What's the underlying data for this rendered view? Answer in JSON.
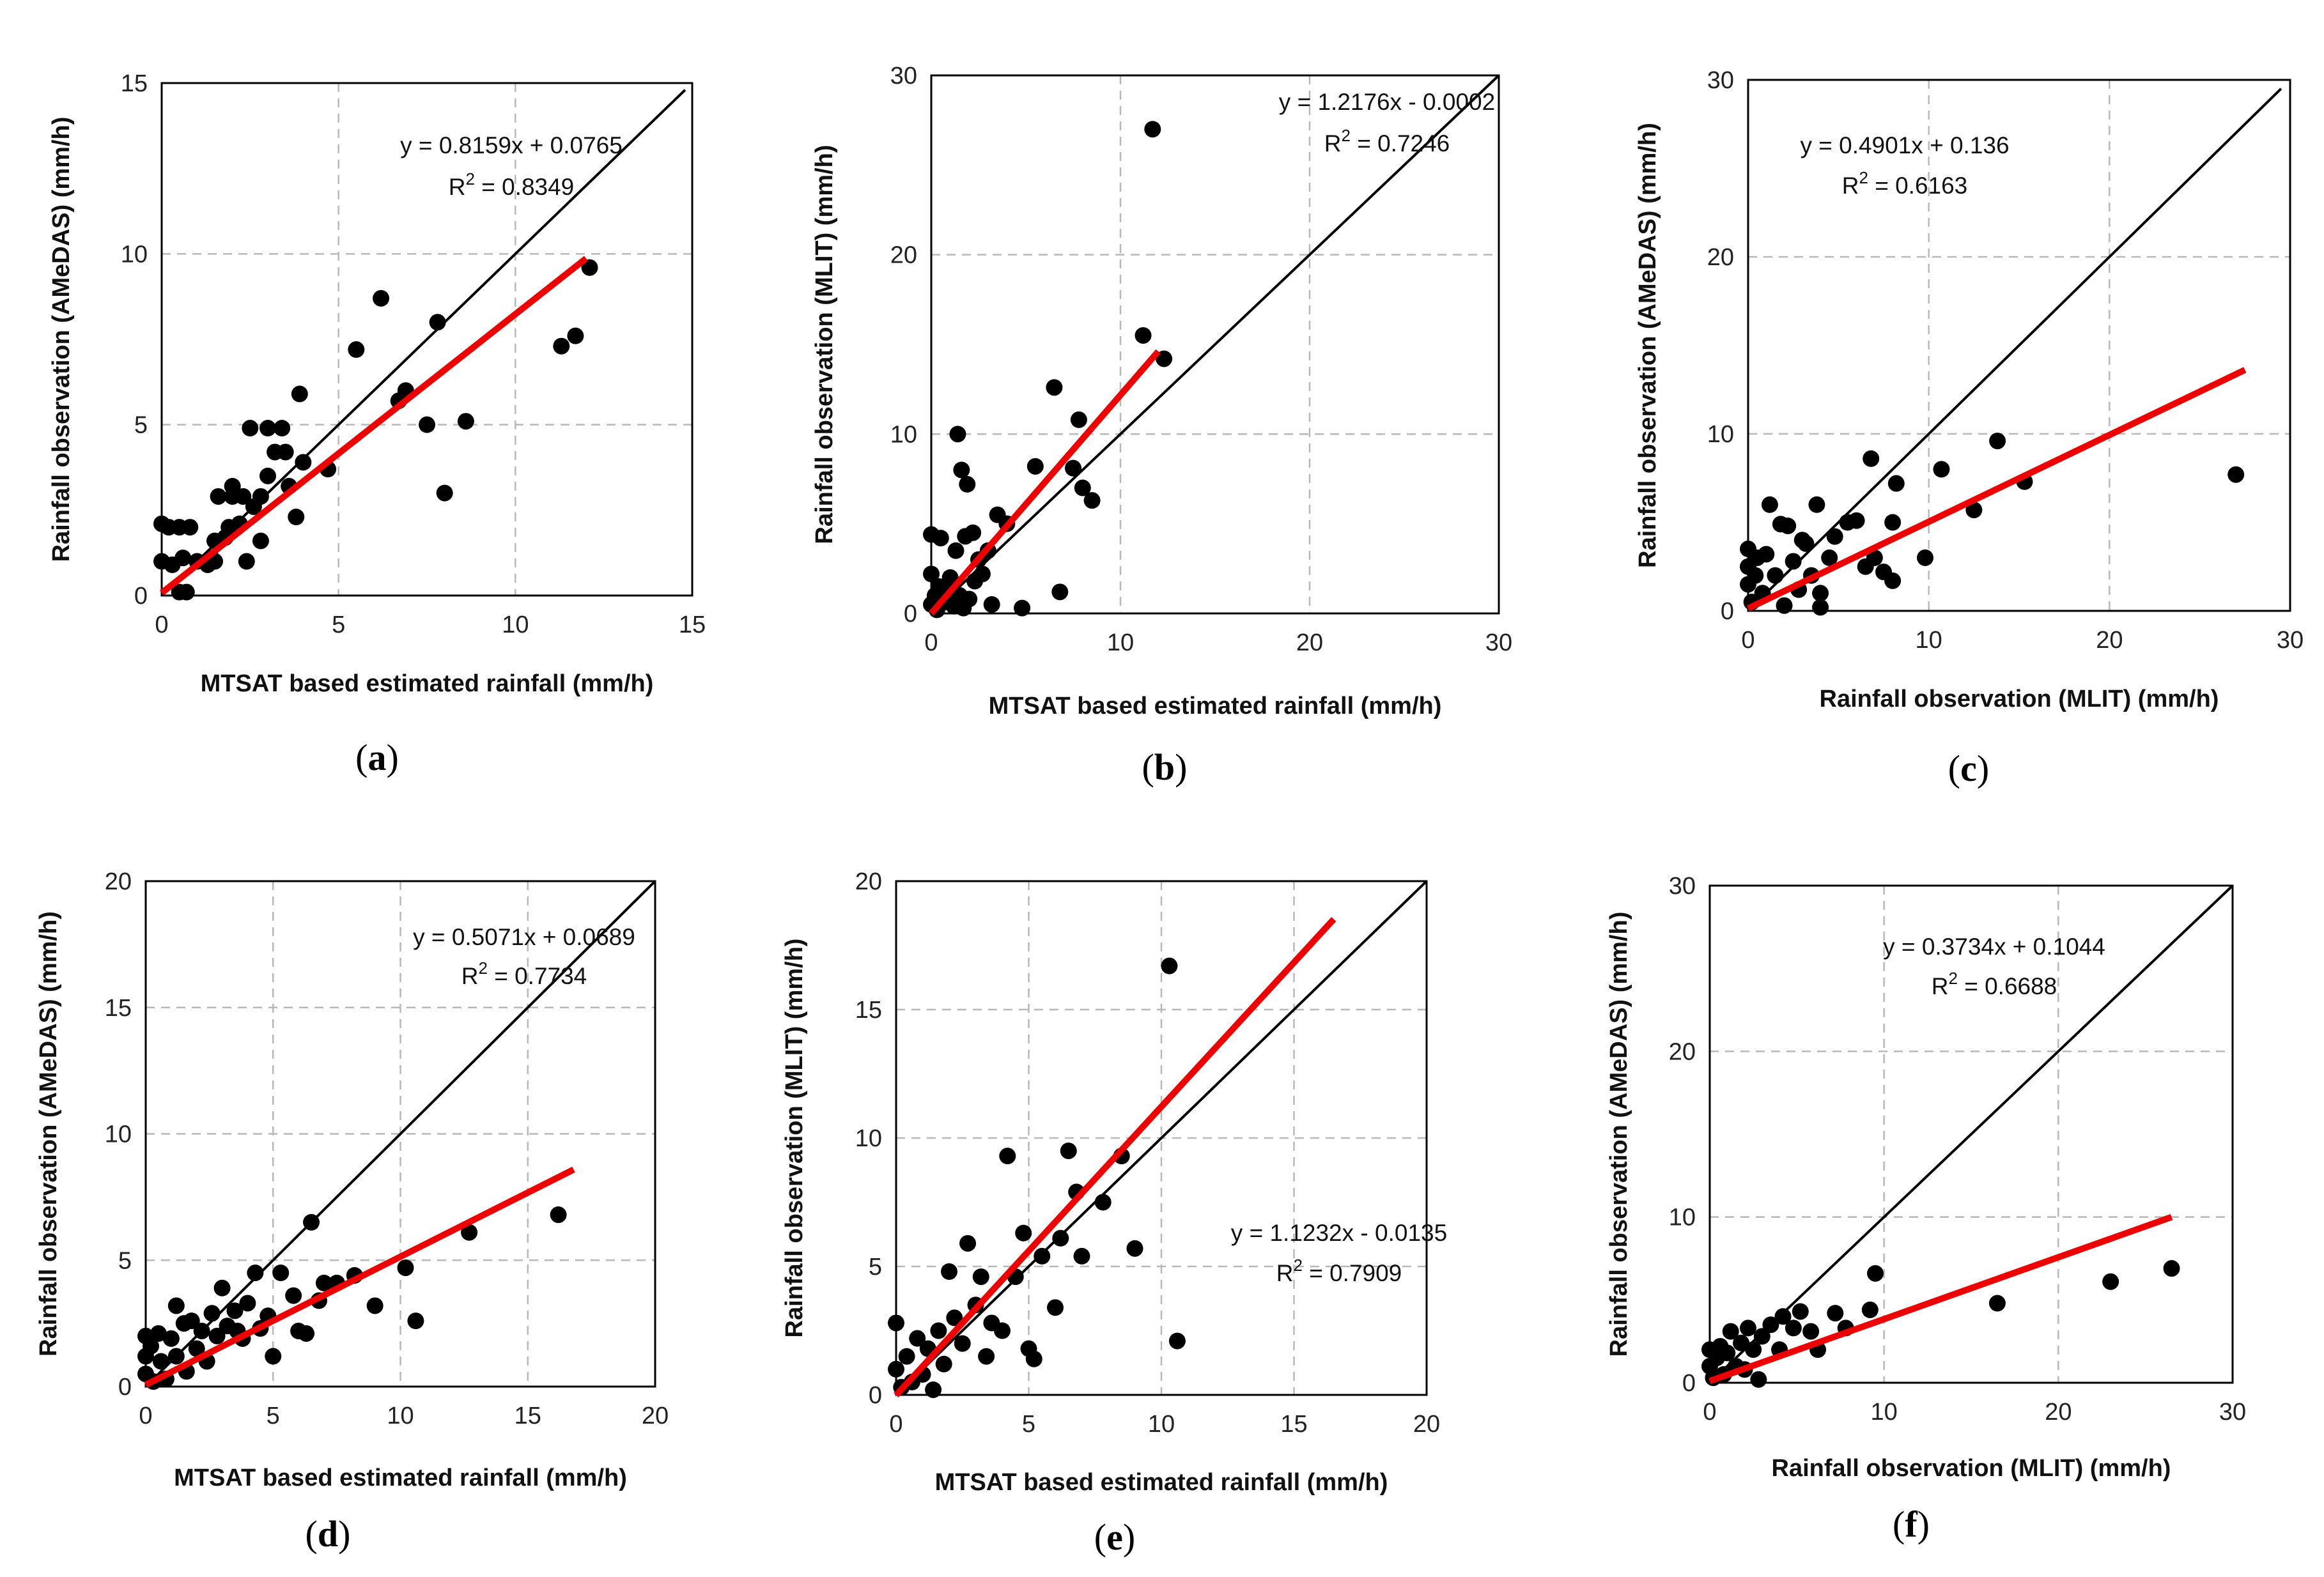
{
  "chart_data": [
    {
      "id": "a",
      "type": "scatter",
      "panel_label": "a",
      "xlabel": "MTSAT based estimated rainfall (mm/h)",
      "ylabel": "Rainfall observation (AMeDAS) (mm/h)",
      "xlim": [
        0,
        15
      ],
      "ylim": [
        0,
        15
      ],
      "xticks": [
        0,
        5,
        10,
        15
      ],
      "yticks": [
        0,
        5,
        10,
        15
      ],
      "equation": "y = 0.8159x + 0.0765",
      "r2_prefix": "R",
      "r2_sup": "2",
      "r2_value": " = 0.8349",
      "regression": {
        "slope": 0.8159,
        "intercept": 0.0765,
        "x_range": [
          0,
          12
        ]
      },
      "identity_max": 14.8,
      "points": [
        [
          0,
          2.1
        ],
        [
          0,
          1
        ],
        [
          0.2,
          2
        ],
        [
          0.3,
          0.9
        ],
        [
          0.5,
          2
        ],
        [
          0.5,
          0.1
        ],
        [
          0.6,
          1.1
        ],
        [
          0.7,
          0.1
        ],
        [
          0.8,
          2
        ],
        [
          1,
          1
        ],
        [
          1.3,
          0.9
        ],
        [
          1.4,
          1.1
        ],
        [
          1.5,
          1
        ],
        [
          1.5,
          1.6
        ],
        [
          1.6,
          2.9
        ],
        [
          1.8,
          1.7
        ],
        [
          1.9,
          2
        ],
        [
          2,
          3.2
        ],
        [
          2,
          2.9
        ],
        [
          2.2,
          2.1
        ],
        [
          2.3,
          2.9
        ],
        [
          2.4,
          1
        ],
        [
          2.5,
          4.9
        ],
        [
          2.6,
          2.6
        ],
        [
          2.8,
          1.6
        ],
        [
          2.8,
          2.9
        ],
        [
          3,
          4.9
        ],
        [
          3,
          3.5
        ],
        [
          3.2,
          4.2
        ],
        [
          3.4,
          4.9
        ],
        [
          3.5,
          4.2
        ],
        [
          3.6,
          3.2
        ],
        [
          3.8,
          2.3
        ],
        [
          3.9,
          5.9
        ],
        [
          4,
          3.9
        ],
        [
          4.7,
          3.7
        ],
        [
          5.5,
          7.2
        ],
        [
          6.2,
          8.7
        ],
        [
          6.7,
          5.7
        ],
        [
          6.9,
          6
        ],
        [
          7.5,
          5
        ],
        [
          7.8,
          8
        ],
        [
          8,
          3
        ],
        [
          8.6,
          5.1
        ],
        [
          11.3,
          7.3
        ],
        [
          11.7,
          7.6
        ],
        [
          12.1,
          9.6
        ]
      ]
    },
    {
      "id": "b",
      "type": "scatter",
      "panel_label": "b",
      "xlabel": "MTSAT based estimated rainfall (mm/h)",
      "ylabel": "Rainfall observation (MLIT) (mm/h)",
      "xlim": [
        0,
        30
      ],
      "ylim": [
        0,
        30
      ],
      "xticks": [
        0,
        10,
        20,
        30
      ],
      "yticks": [
        0,
        10,
        20,
        30
      ],
      "equation": "y = 1.2176x - 0.0002",
      "r2_prefix": "R",
      "r2_sup": "2",
      "r2_value": " = 0.7246",
      "regression": {
        "slope": 1.2176,
        "intercept": -0.0002,
        "x_range": [
          0,
          12
        ]
      },
      "identity_max": 30,
      "points": [
        [
          0,
          4.4
        ],
        [
          0,
          2.2
        ],
        [
          0,
          0.5
        ],
        [
          0.2,
          1
        ],
        [
          0.3,
          0.2
        ],
        [
          0.4,
          1.5
        ],
        [
          0.5,
          4.2
        ],
        [
          0.6,
          0.6
        ],
        [
          0.8,
          1.2
        ],
        [
          1,
          2
        ],
        [
          1.2,
          0.4
        ],
        [
          1.3,
          3.5
        ],
        [
          1.4,
          10
        ],
        [
          1.5,
          1
        ],
        [
          1.6,
          8
        ],
        [
          1.7,
          0.3
        ],
        [
          1.8,
          4.3
        ],
        [
          1.9,
          7.2
        ],
        [
          2,
          0.8
        ],
        [
          2.2,
          4.5
        ],
        [
          2.3,
          1.8
        ],
        [
          2.5,
          3
        ],
        [
          2.7,
          2.2
        ],
        [
          3,
          3.5
        ],
        [
          3.2,
          0.5
        ],
        [
          3.5,
          5.5
        ],
        [
          4,
          5
        ],
        [
          4.8,
          0.3
        ],
        [
          5.5,
          8.2
        ],
        [
          6.5,
          12.6
        ],
        [
          6.8,
          1.2
        ],
        [
          7.5,
          8.1
        ],
        [
          7.8,
          10.8
        ],
        [
          8,
          7
        ],
        [
          8.5,
          6.3
        ],
        [
          11.2,
          15.5
        ],
        [
          11.7,
          27
        ],
        [
          12.3,
          14.2
        ]
      ]
    },
    {
      "id": "c",
      "type": "scatter",
      "panel_label": "c",
      "xlabel": "Rainfall observation (MLIT) (mm/h)",
      "ylabel": "Rainfall observation (AMeDAS) (mm/h)",
      "xlim": [
        0,
        30
      ],
      "ylim": [
        0,
        30
      ],
      "xticks": [
        0,
        10,
        20,
        30
      ],
      "yticks": [
        0,
        10,
        20,
        30
      ],
      "equation": "y = 0.4901x + 0.136",
      "r2_prefix": "R",
      "r2_sup": "2",
      "r2_value": " = 0.6163",
      "regression": {
        "slope": 0.4901,
        "intercept": 0.136,
        "x_range": [
          0,
          27.5
        ]
      },
      "identity_max": 29.5,
      "points": [
        [
          0,
          3.5
        ],
        [
          0,
          2.5
        ],
        [
          0,
          1.5
        ],
        [
          0.2,
          0.5
        ],
        [
          0.4,
          2
        ],
        [
          0.5,
          3
        ],
        [
          0.8,
          1
        ],
        [
          1,
          3.2
        ],
        [
          1.2,
          6
        ],
        [
          1.5,
          2
        ],
        [
          1.8,
          4.9
        ],
        [
          2,
          0.3
        ],
        [
          2.2,
          4.8
        ],
        [
          2.5,
          2.8
        ],
        [
          2.8,
          1.2
        ],
        [
          3,
          4
        ],
        [
          3.2,
          3.8
        ],
        [
          3.5,
          2
        ],
        [
          3.8,
          6
        ],
        [
          4,
          1
        ],
        [
          4,
          0.2
        ],
        [
          4.5,
          3
        ],
        [
          4.8,
          4.2
        ],
        [
          5.5,
          5
        ],
        [
          6,
          5.1
        ],
        [
          6.5,
          2.5
        ],
        [
          6.8,
          8.6
        ],
        [
          7,
          3
        ],
        [
          7.5,
          2.2
        ],
        [
          8,
          5
        ],
        [
          8,
          1.7
        ],
        [
          8.2,
          7.2
        ],
        [
          9.8,
          3
        ],
        [
          10.7,
          8
        ],
        [
          12.5,
          5.7
        ],
        [
          13.8,
          9.6
        ],
        [
          15.3,
          7.3
        ],
        [
          27,
          7.7
        ]
      ]
    },
    {
      "id": "d",
      "type": "scatter",
      "panel_label": "d",
      "xlabel": "MTSAT based estimated rainfall (mm/h)",
      "ylabel": "Rainfall observation (AMeDAS)  (mm/h)",
      "xlim": [
        0,
        20
      ],
      "ylim": [
        0,
        20
      ],
      "xticks": [
        0,
        5,
        10,
        15,
        20
      ],
      "yticks": [
        0,
        5,
        10,
        15,
        20
      ],
      "equation": "y = 0.5071x + 0.0689",
      "r2_prefix": "R",
      "r2_sup": "2",
      "r2_value": " = 0.7734",
      "regression": {
        "slope": 0.5071,
        "intercept": 0.0689,
        "x_range": [
          0,
          16.8
        ]
      },
      "identity_max": 20,
      "points": [
        [
          0,
          2
        ],
        [
          0,
          1.2
        ],
        [
          0,
          0.5
        ],
        [
          0.2,
          1.6
        ],
        [
          0.3,
          0.2
        ],
        [
          0.5,
          2.1
        ],
        [
          0.6,
          1
        ],
        [
          0.8,
          0.3
        ],
        [
          1,
          1.9
        ],
        [
          1.2,
          3.2
        ],
        [
          1.2,
          1.2
        ],
        [
          1.5,
          2.5
        ],
        [
          1.6,
          0.6
        ],
        [
          1.8,
          2.6
        ],
        [
          2,
          1.5
        ],
        [
          2.2,
          2.2
        ],
        [
          2.4,
          1
        ],
        [
          2.6,
          2.9
        ],
        [
          2.8,
          2
        ],
        [
          3,
          3.9
        ],
        [
          3.2,
          2.4
        ],
        [
          3.5,
          3
        ],
        [
          3.6,
          2.2
        ],
        [
          3.8,
          1.9
        ],
        [
          4,
          3.3
        ],
        [
          4.3,
          4.5
        ],
        [
          4.5,
          2.3
        ],
        [
          4.8,
          2.8
        ],
        [
          5,
          1.2
        ],
        [
          5.3,
          4.5
        ],
        [
          5.8,
          3.6
        ],
        [
          6,
          2.2
        ],
        [
          6.3,
          2.1
        ],
        [
          6.5,
          6.5
        ],
        [
          6.8,
          3.4
        ],
        [
          7,
          4.1
        ],
        [
          7.5,
          4.1
        ],
        [
          8.2,
          4.4
        ],
        [
          9,
          3.2
        ],
        [
          10.2,
          4.7
        ],
        [
          10.6,
          2.6
        ],
        [
          12.7,
          6.1
        ],
        [
          16.2,
          6.8
        ]
      ]
    },
    {
      "id": "e",
      "type": "scatter",
      "panel_label": "e",
      "xlabel": "MTSAT based estimated rainfall (mm/h)",
      "ylabel": "Rainfall observation (MLIT)  (mm/h)",
      "xlim": [
        0,
        20
      ],
      "ylim": [
        0,
        20
      ],
      "xticks": [
        0,
        5,
        10,
        15,
        20
      ],
      "yticks": [
        0,
        5,
        10,
        15,
        20
      ],
      "equation": "y = 1.1232x - 0.0135",
      "r2_prefix": "R",
      "r2_sup": "2",
      "r2_value": " = 0.7909",
      "regression": {
        "slope": 1.1232,
        "intercept": -0.0135,
        "x_range": [
          0,
          16.5
        ]
      },
      "identity_max": 20,
      "points": [
        [
          0,
          2.8
        ],
        [
          0,
          1
        ],
        [
          0.2,
          0.3
        ],
        [
          0.4,
          1.5
        ],
        [
          0.6,
          0.5
        ],
        [
          0.8,
          2.2
        ],
        [
          1,
          0.8
        ],
        [
          1.2,
          1.8
        ],
        [
          1.4,
          0.2
        ],
        [
          1.6,
          2.5
        ],
        [
          1.8,
          1.2
        ],
        [
          2,
          4.8
        ],
        [
          2.2,
          3
        ],
        [
          2.5,
          2
        ],
        [
          2.7,
          5.9
        ],
        [
          3,
          3.5
        ],
        [
          3.2,
          4.6
        ],
        [
          3.4,
          1.5
        ],
        [
          3.6,
          2.8
        ],
        [
          4,
          2.5
        ],
        [
          4.2,
          9.3
        ],
        [
          4.5,
          4.6
        ],
        [
          4.8,
          6.3
        ],
        [
          5,
          1.8
        ],
        [
          5.2,
          1.4
        ],
        [
          5.5,
          5.4
        ],
        [
          6,
          3.4
        ],
        [
          6.2,
          6.1
        ],
        [
          6.5,
          9.5
        ],
        [
          6.8,
          7.9
        ],
        [
          7,
          5.4
        ],
        [
          7.8,
          7.5
        ],
        [
          8.5,
          9.3
        ],
        [
          9,
          5.7
        ],
        [
          10.3,
          16.7
        ],
        [
          10.6,
          2.1
        ]
      ]
    },
    {
      "id": "f",
      "type": "scatter",
      "panel_label": "f",
      "xlabel": "Rainfall observation (MLIT) (mm/h)",
      "ylabel": "Rainfall observation (AMeDAS)  (mm/h)",
      "xlim": [
        0,
        30
      ],
      "ylim": [
        0,
        30
      ],
      "xticks": [
        0,
        10,
        20,
        30
      ],
      "yticks": [
        0,
        10,
        20,
        30
      ],
      "equation": "y = 0.3734x + 0.1044",
      "r2_prefix": "R",
      "r2_sup": "2",
      "r2_value": " = 0.6688",
      "regression": {
        "slope": 0.3734,
        "intercept": 0.1044,
        "x_range": [
          0,
          26.5
        ]
      },
      "identity_max": 30,
      "points": [
        [
          0,
          2
        ],
        [
          0,
          1
        ],
        [
          0.2,
          0.3
        ],
        [
          0.4,
          1.5
        ],
        [
          0.6,
          2.2
        ],
        [
          0.8,
          0.5
        ],
        [
          1,
          1.8
        ],
        [
          1.2,
          3.1
        ],
        [
          1.5,
          1
        ],
        [
          1.8,
          2.4
        ],
        [
          2,
          0.8
        ],
        [
          2.2,
          3.3
        ],
        [
          2.5,
          2
        ],
        [
          2.8,
          0.2
        ],
        [
          3,
          2.8
        ],
        [
          3.5,
          3.5
        ],
        [
          4,
          2
        ],
        [
          4.2,
          4
        ],
        [
          4.8,
          3.3
        ],
        [
          5.2,
          4.3
        ],
        [
          5.8,
          3.1
        ],
        [
          6.2,
          2
        ],
        [
          7.2,
          4.2
        ],
        [
          7.8,
          3.3
        ],
        [
          9.5,
          6.6
        ],
        [
          9.2,
          4.4
        ],
        [
          16.5,
          4.8
        ],
        [
          23,
          6.1
        ],
        [
          26.5,
          6.9
        ]
      ]
    }
  ],
  "colors": {
    "points": "#000000",
    "identity_line": "#000000",
    "regression_line": "#ee0000",
    "grid": "#b8b8b8",
    "axis": "#000000"
  }
}
